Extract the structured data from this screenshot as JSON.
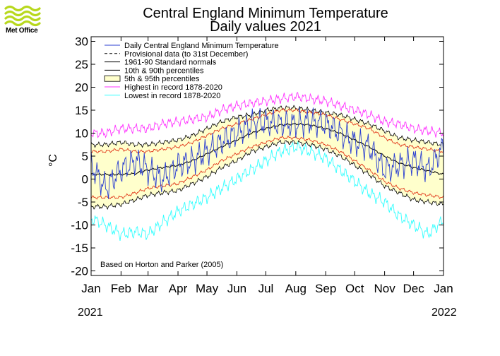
{
  "logo": {
    "text": "Met Office",
    "color": "#b8d81e"
  },
  "chart_data": {
    "type": "line",
    "title": "Central England Minimum Temperature",
    "subtitle": "Daily values 2021",
    "ylabel": "°C",
    "xlabel": "",
    "ylim": [
      -21,
      31
    ],
    "yticks": [
      30,
      25,
      20,
      15,
      10,
      5,
      0,
      -5,
      -10,
      -15,
      -20
    ],
    "months": [
      "Jan",
      "Feb",
      "Mar",
      "Apr",
      "May",
      "Jun",
      "Jul",
      "Aug",
      "Sep",
      "Oct",
      "Nov",
      "Dec",
      "Jan"
    ],
    "month_start_day": [
      0,
      31,
      59,
      90,
      120,
      151,
      181,
      212,
      243,
      273,
      304,
      334,
      365
    ],
    "year_start_label": "2021",
    "year_end_label": "2022",
    "note": "Based on Horton and Parker (2005)",
    "legend_position": "top-left",
    "legend": [
      {
        "label": "Daily Central England Minimum Temperature",
        "style": "line",
        "color": "#2b3fd1"
      },
      {
        "label": "Provisional data (to 31st December)",
        "style": "dash",
        "color": "#000000"
      },
      {
        "label": "1961-90 Standard normals",
        "style": "line",
        "color": "#000000"
      },
      {
        "label": "10th & 90th percentiles",
        "style": "line",
        "color": "#000000"
      },
      {
        "label": "5th & 95th percentiles",
        "style": "box",
        "color": "#ffffcc",
        "border": "#000000"
      },
      {
        "label": "Highest in record 1878-2020",
        "style": "line",
        "color": "#ff33ff"
      },
      {
        "label": "Lowest in record 1878-2020",
        "style": "line",
        "color": "#33ffff"
      }
    ],
    "colors": {
      "daily": "#2b3fd1",
      "normal": "#000000",
      "p10_90": "#e23a1c",
      "band": "#ffffcc",
      "band_edge": "#000000",
      "highest": "#ff33ff",
      "lowest": "#33ffff"
    },
    "series_anchor_days": [
      0,
      15,
      31,
      46,
      59,
      74,
      90,
      105,
      120,
      135,
      151,
      166,
      181,
      196,
      212,
      227,
      243,
      258,
      273,
      288,
      304,
      319,
      334,
      349,
      365
    ],
    "series": {
      "normal": [
        1.0,
        1.0,
        1.0,
        1.2,
        2.0,
        2.5,
        3.0,
        4.0,
        5.5,
        7.0,
        8.5,
        10.0,
        11.0,
        11.8,
        12.0,
        11.8,
        11.0,
        10.0,
        8.5,
        7.0,
        5.0,
        3.5,
        2.5,
        1.8,
        1.0
      ],
      "p90": [
        6.0,
        6.0,
        6.5,
        6.0,
        6.0,
        6.5,
        7.0,
        8.0,
        9.5,
        11.0,
        12.0,
        13.0,
        14.0,
        15.0,
        15.0,
        14.5,
        14.0,
        13.0,
        12.0,
        11.0,
        9.0,
        7.5,
        7.0,
        6.5,
        6.0
      ],
      "p10": [
        -4.0,
        -4.0,
        -4.0,
        -3.0,
        -2.0,
        -1.5,
        -1.0,
        0.5,
        2.0,
        4.0,
        5.5,
        7.0,
        8.0,
        9.0,
        9.0,
        8.5,
        7.5,
        6.0,
        4.0,
        2.0,
        -0.5,
        -2.0,
        -3.0,
        -3.5,
        -4.0
      ],
      "p95": [
        7.5,
        7.5,
        8.0,
        7.5,
        7.5,
        8.0,
        8.5,
        9.5,
        11.0,
        12.5,
        13.5,
        14.0,
        15.0,
        15.5,
        15.5,
        15.0,
        14.5,
        14.0,
        13.0,
        12.0,
        10.5,
        9.0,
        8.5,
        8.0,
        7.5
      ],
      "p05": [
        -6.0,
        -6.0,
        -5.5,
        -4.5,
        -3.5,
        -3.0,
        -2.5,
        -1.0,
        0.5,
        2.5,
        4.0,
        6.0,
        7.0,
        8.0,
        8.0,
        7.5,
        6.5,
        5.0,
        3.0,
        1.0,
        -1.5,
        -3.0,
        -4.5,
        -5.0,
        -5.5
      ],
      "highest": [
        10.0,
        10.0,
        11.0,
        11.0,
        11.0,
        12.0,
        12.5,
        13.0,
        13.5,
        15.0,
        16.0,
        16.5,
        17.0,
        17.5,
        18.0,
        17.5,
        17.0,
        16.0,
        15.0,
        14.0,
        12.5,
        12.0,
        11.0,
        10.5,
        10.0
      ],
      "lowest": [
        -8.5,
        -10.0,
        -12.0,
        -11.5,
        -12.0,
        -9.5,
        -7.0,
        -5.5,
        -4.0,
        -2.0,
        0.0,
        2.0,
        4.0,
        6.0,
        7.0,
        6.0,
        4.5,
        2.0,
        -0.5,
        -3.0,
        -5.0,
        -8.0,
        -10.0,
        -12.0,
        -9.0
      ],
      "daily": [
        3.0,
        -2.0,
        2.0,
        4.0,
        2.0,
        0.0,
        3.0,
        4.0,
        6.0,
        8.0,
        10.0,
        12.0,
        12.5,
        12.0,
        12.0,
        12.5,
        12.0,
        10.0,
        8.0,
        7.0,
        2.0,
        3.0,
        4.0,
        2.0,
        7.0
      ]
    }
  }
}
